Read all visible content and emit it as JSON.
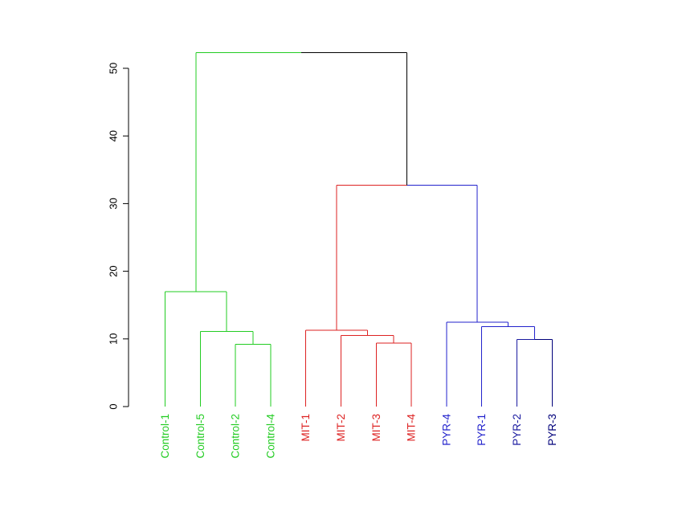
{
  "chart_data": {
    "type": "dendrogram",
    "title": "",
    "xlabel": "",
    "ylabel": "",
    "ylim": [
      0,
      52
    ],
    "y_ticks": [
      "0",
      "10",
      "20",
      "30",
      "40",
      "50"
    ],
    "leaf_order": [
      "Control-1",
      "Control-5",
      "Control-2",
      "Control-4",
      "MIT-1",
      "MIT-2",
      "MIT-3",
      "MIT-4",
      "PYR-4",
      "PYR-1",
      "PYR-2",
      "PYR-3"
    ],
    "colors": {
      "Control": "#22cc22",
      "MIT": "#dd2222",
      "PYR": "#2222cc",
      "neutral": "#000000",
      "PYR-3": "#00007a",
      "PYR-2": "#1a1aa0"
    },
    "groups": [
      {
        "name": "Control",
        "leaves": [
          "Control-1",
          "Control-5",
          "Control-2",
          "Control-4"
        ],
        "color": "#22cc22"
      },
      {
        "name": "MIT",
        "leaves": [
          "MIT-1",
          "MIT-2",
          "MIT-3",
          "MIT-4"
        ],
        "color": "#dd2222"
      },
      {
        "name": "PYR",
        "leaves": [
          "PYR-4",
          "PYR-1",
          "PYR-2",
          "PYR-3"
        ],
        "color": "#2222cc"
      }
    ],
    "merges": [
      {
        "left": "Control-2",
        "right": "Control-4",
        "height": 9.2,
        "color": "#22cc22"
      },
      {
        "left": "Control-5",
        "right": "Control-2+Control-4",
        "height": 11.1,
        "color": "#22cc22"
      },
      {
        "left": "Control-1",
        "right": "Control-5+Control-2+Control-4",
        "height": 17.0,
        "color": "#22cc22"
      },
      {
        "left": "MIT-3",
        "right": "MIT-4",
        "height": 9.4,
        "color": "#dd2222"
      },
      {
        "left": "MIT-2",
        "right": "MIT-3+MIT-4",
        "height": 10.5,
        "color": "#dd2222"
      },
      {
        "left": "MIT-1",
        "right": "MIT-2+MIT-3+MIT-4",
        "height": 11.3,
        "color": "#dd2222"
      },
      {
        "left": "PYR-2",
        "right": "PYR-3",
        "height": 9.9,
        "color": "#00007a"
      },
      {
        "left": "PYR-1",
        "right": "PYR-2+PYR-3",
        "height": 11.8,
        "color": "#2222cc"
      },
      {
        "left": "PYR-4",
        "right": "PYR-1+PYR-2+PYR-3",
        "height": 12.5,
        "color": "#2222cc"
      },
      {
        "left": "MIT cluster",
        "right": "PYR cluster",
        "height": 32.7,
        "color_left": "#dd2222",
        "color_right": "#2222cc"
      },
      {
        "left": "Control cluster",
        "right": "MIT+PYR cluster",
        "height": 52.3,
        "color_left": "#22cc22",
        "color_right": "#000000"
      }
    ]
  }
}
